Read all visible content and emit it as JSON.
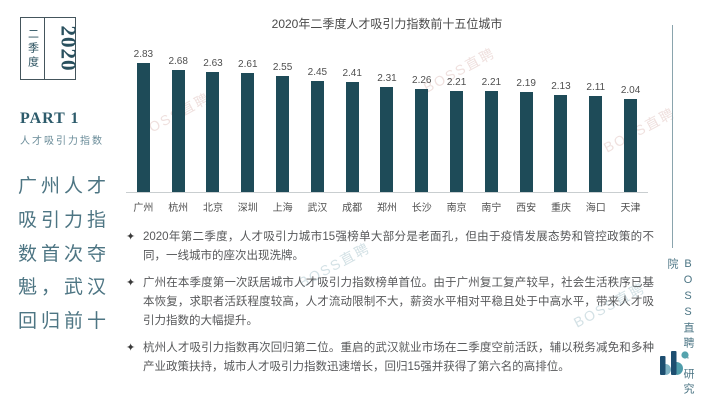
{
  "page": {
    "background": "#ffffff"
  },
  "sidebar": {
    "quarter_box": {
      "year": "2020",
      "quarter": "二季度"
    },
    "part_label": "PART 1",
    "part_subtitle": "人才吸引力指数",
    "headline": "广州人才吸引力指数首次夺魁，武汉回归前十"
  },
  "chart_data": {
    "type": "bar",
    "title": "2020年二季度人才吸引力指数前十五位城市",
    "categories": [
      "广州",
      "杭州",
      "北京",
      "深圳",
      "上海",
      "武汉",
      "成都",
      "郑州",
      "长沙",
      "南京",
      "南宁",
      "西安",
      "重庆",
      "海口",
      "天津"
    ],
    "values": [
      2.83,
      2.68,
      2.63,
      2.61,
      2.55,
      2.45,
      2.41,
      2.31,
      2.26,
      2.21,
      2.21,
      2.19,
      2.13,
      2.11,
      2.04
    ],
    "bar_color": "#1e4b58",
    "ylim": [
      0,
      3
    ],
    "grid": false,
    "legend_position": "none",
    "xlabel": "",
    "ylabel": "",
    "value_labels_shown": true
  },
  "bullets": {
    "marker": "✦",
    "items": [
      "2020年第二季度，人才吸引力城市15强榜单大部分是老面孔，但由于疫情发展态势和管控政策的不同，一线城市的座次出现洗牌。",
      "广州在本季度第一次跃居城市人才吸引力指数榜单首位。由于广州复工复产较早，社会生活秩序已基本恢复，求职者活跃程度较高，人才流动限制不大，薪资水平相对平稳且处于中高水平，带来人才吸引力指数的大幅提升。",
      "杭州人才吸引力指数再次回归第二位。重启的武汉就业市场在二季度空前活跃，辅以税务减免和多种产业政策扶持，城市人才吸引力指数迅速增长，回归15强并获得了第六名的高排位。"
    ]
  },
  "right_rail": {
    "label": "BOSS直聘·研究院",
    "logo_icon": "bosszhipin-logo"
  },
  "watermark": {
    "text": "BOSS直聘"
  },
  "colors": {
    "bar": "#1e4b58",
    "accent_teal": "#4d7583",
    "body_text": "#57585a"
  }
}
